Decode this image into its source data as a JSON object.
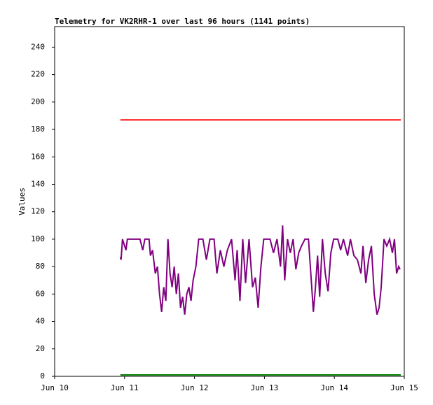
{
  "chart_data": {
    "type": "line",
    "title": "Telemetry for VK2RHR-1 over last 96 hours (1141 points)",
    "y_label": "Values",
    "xlim": [
      10,
      15
    ],
    "xticks": [
      {
        "value": 10,
        "label": "Jun 10"
      },
      {
        "value": 11,
        "label": "Jun 11"
      },
      {
        "value": 12,
        "label": "Jun 12"
      },
      {
        "value": 13,
        "label": "Jun 13"
      },
      {
        "value": 14,
        "label": "Jun 14"
      },
      {
        "value": 15,
        "label": "Jun 15"
      }
    ],
    "ylim": [
      0,
      255
    ],
    "yticks": [
      0,
      20,
      40,
      60,
      80,
      100,
      120,
      140,
      160,
      180,
      200,
      220,
      240
    ],
    "grid": false,
    "series": [
      {
        "color": "#ff0000",
        "x": [
          10.94,
          14.95
        ],
        "values": [
          187,
          187
        ]
      },
      {
        "color": "#800080",
        "x": [
          10.94,
          10.95,
          10.97,
          11.02,
          11.04,
          11.12,
          11.22,
          11.26,
          11.29,
          11.35,
          11.37,
          11.4,
          11.44,
          11.47,
          11.5,
          11.53,
          11.56,
          11.59,
          11.62,
          11.65,
          11.68,
          11.71,
          11.74,
          11.77,
          11.8,
          11.83,
          11.86,
          11.89,
          11.92,
          11.95,
          11.98,
          12.02,
          12.06,
          12.12,
          12.17,
          12.22,
          12.28,
          12.32,
          12.37,
          12.42,
          12.47,
          12.53,
          12.58,
          12.61,
          12.65,
          12.69,
          12.73,
          12.78,
          12.83,
          12.87,
          12.91,
          12.95,
          12.99,
          13.08,
          13.13,
          13.18,
          13.23,
          13.26,
          13.29,
          13.33,
          13.37,
          13.41,
          13.45,
          13.49,
          13.53,
          13.58,
          13.63,
          13.67,
          13.7,
          13.73,
          13.76,
          13.79,
          13.83,
          13.87,
          13.91,
          13.95,
          13.99,
          14.05,
          14.09,
          14.13,
          14.19,
          14.23,
          14.28,
          14.33,
          14.38,
          14.41,
          14.45,
          14.49,
          14.53,
          14.57,
          14.61,
          14.64,
          14.67,
          14.71,
          14.75,
          14.79,
          14.83,
          14.86,
          14.89,
          14.92,
          14.94
        ],
        "values": [
          87,
          85,
          100,
          92,
          100,
          100,
          100,
          92,
          100,
          100,
          88,
          92,
          75,
          80,
          60,
          47,
          65,
          55,
          100,
          75,
          65,
          80,
          60,
          75,
          50,
          58,
          45,
          60,
          65,
          55,
          70,
          80,
          100,
          100,
          85,
          100,
          100,
          75,
          92,
          80,
          92,
          100,
          70,
          92,
          55,
          100,
          68,
          100,
          65,
          72,
          50,
          80,
          100,
          100,
          90,
          100,
          80,
          110,
          70,
          100,
          90,
          100,
          78,
          90,
          95,
          100,
          100,
          70,
          47,
          65,
          88,
          58,
          100,
          75,
          62,
          90,
          100,
          100,
          92,
          100,
          88,
          100,
          88,
          85,
          75,
          95,
          68,
          85,
          95,
          60,
          45,
          50,
          65,
          100,
          95,
          100,
          90,
          100,
          75,
          80,
          78
        ]
      },
      {
        "color": "#008000",
        "x": [
          10.94,
          14.95
        ],
        "values": [
          1,
          1
        ]
      }
    ]
  }
}
